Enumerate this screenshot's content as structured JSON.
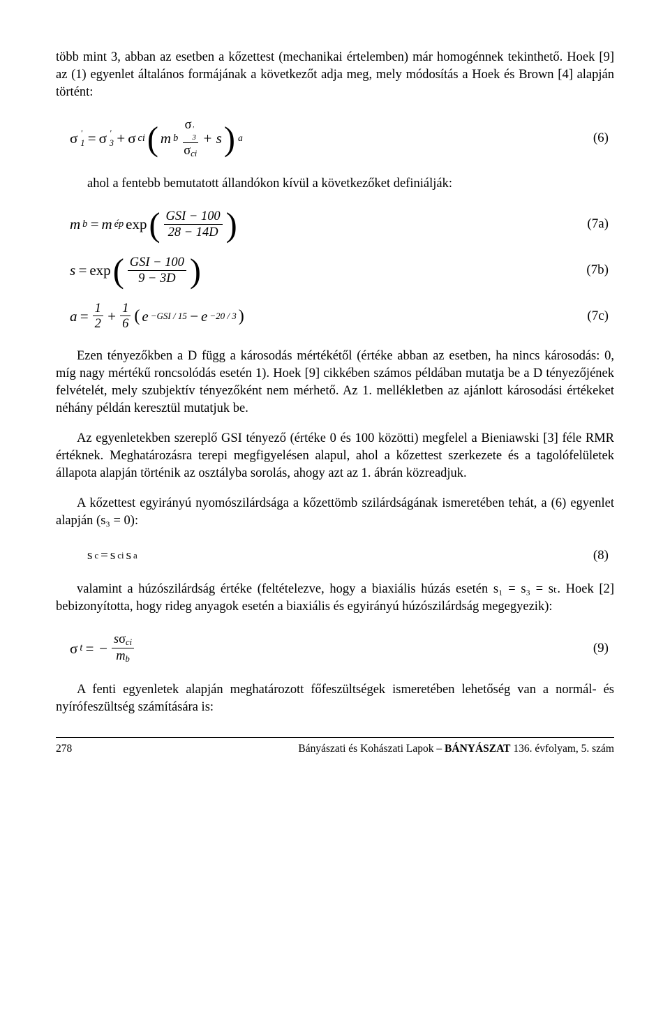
{
  "p1": "több mint 3, abban az esetben a kőzettest (mechanikai értelemben) már homogénnek tekinthető. Hoek [9] az (1) egyenlet általános formájának a következőt adja meg, mely módosítás a Hoek és Brown [4] alapján történt:",
  "eq6": {
    "lhs_sigma": "σ",
    "lhs_sup": "'",
    "lhs_sub": "1",
    "eq": " = ",
    "t1_sigma": "σ",
    "t1_sup": "'",
    "t1_sub": "3",
    "plus1": " + ",
    "t2_sigma": "σ",
    "t2_sub": "ci",
    "mb": "m",
    "mb_sub": "b",
    "frac_num_sigma": "σ",
    "frac_num_sup": "'",
    "frac_num_sub": "3",
    "frac_den_sigma": "σ",
    "frac_den_sub": "ci",
    "plus_s": " + s",
    "outer_exp": "a",
    "num": "(6)"
  },
  "p2": "ahol a fentebb bemutatott állandókon kívül a következőket definiálják:",
  "eq7a": {
    "lhs": "m",
    "lhs_sub": "b",
    "eq": " = ",
    "mep": "m",
    "mep_sub": "ép",
    "exp": " exp",
    "frac_num": "GSI − 100",
    "frac_den": "28 − 14D",
    "num": "(7a)"
  },
  "eq7b": {
    "lhs": "s",
    "eq": " = ",
    "exp": "exp",
    "frac_num": "GSI − 100",
    "frac_den": "9 − 3D",
    "num": "(7b)"
  },
  "eq7c": {
    "lhs": "a",
    "eq": " = ",
    "f1n": "1",
    "f1d": "2",
    "plus": " + ",
    "f2n": "1",
    "f2d": "6",
    "e1": "e",
    "e1exp": "−GSI / 15",
    "minus": " − ",
    "e2": "e",
    "e2exp": "−20 / 3",
    "num": "(7c)"
  },
  "p3": "Ezen tényezőkben a D függ a károsodás mértékétől (értéke abban az esetben, ha nincs károsodás: 0, míg nagy mértékű roncsolódás esetén 1). Hoek [9] cikkében számos példában mutatja be a D tényezőjének felvételét, mely szubjektív tényezőként nem mérhető. Az 1. mellékletben az ajánlott károsodási értékeket néhány példán keresztül mutatjuk be.",
  "p4": "Az egyenletekben szereplő GSI tényező (értéke 0 és 100 közötti) megfelel a Bieniawski [3] féle RMR értéknek. Meghatározásra terepi megfigyelésen alapul, ahol a kőzettest szerkezete és a tagolófelületek állapota alapján történik az osztályba sorolás, ahogy azt az 1. ábrán közreadjuk.",
  "p5": "A kőzettest egyirányú nyomószilárdsága a kőzettömb szilárdságának ismeretében tehát, a (6) egyenlet alapján (s₃ = 0):",
  "eq8": {
    "text": "sc = sci sa",
    "s1": "s",
    "s1sub": "c",
    "eq": " = ",
    "s2": "s",
    "s2sub": "ci",
    "s3": " s",
    "s3sup": "a",
    "num": "(8)"
  },
  "p6": "valamint a húzószilárdság értéke (feltételezve, hogy a biaxiális húzás esetén s₁ = s₃ = sₜ. Hoek [2] bebizonyította, hogy rideg anyagok esetén a biaxiális és egyirányú húzószilárdság megegyezik):",
  "eq9": {
    "sigma": "σ",
    "sub": "t",
    "eq": " = −",
    "num_s": "s",
    "num_sigma": "σ",
    "num_sub": "ci",
    "den_m": "m",
    "den_sub": "b",
    "numLabel": "(9)"
  },
  "p7": "A fenti egyenletek alapján meghatározott főfeszültségek ismeretében lehetőség van a normál- és nyírófeszültség számítására is:",
  "footer": {
    "page": "278",
    "journal": "Bányászati és Kohászati Lapok – BÁNYÁSZAT 136. évfolyam, 5. szám"
  }
}
